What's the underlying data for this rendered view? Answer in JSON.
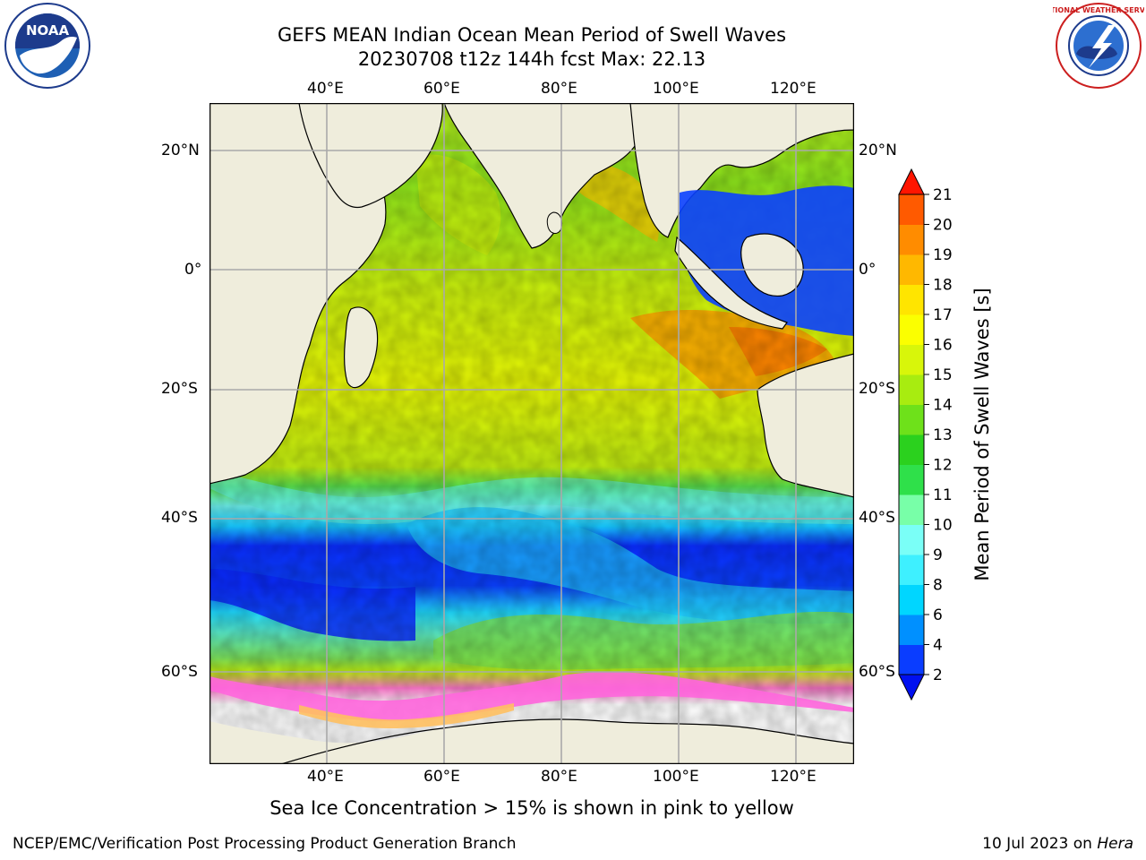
{
  "title": {
    "line1": "GEFS MEAN Indian Ocean Mean Period of Swell Waves",
    "line2": "20230708 t12z 144h fcst   Max: 22.13"
  },
  "logos": {
    "left_icon": "noaa-logo",
    "left_text": "NOAA",
    "right_icon": "nws-logo",
    "right_text": "NATIONAL WEATHER SERVICE"
  },
  "axes": {
    "lon_labels": [
      "40°E",
      "60°E",
      "80°E",
      "100°E",
      "120°E"
    ],
    "lon_values": [
      40,
      60,
      80,
      100,
      120
    ],
    "lat_labels": [
      "20°N",
      "0°",
      "20°S",
      "40°S",
      "60°S"
    ],
    "lat_values": [
      20,
      0,
      -20,
      -40,
      -60
    ],
    "lon_range": [
      20,
      130
    ],
    "lat_range": [
      -72,
      28
    ],
    "grid": true
  },
  "colorbar": {
    "title": "Mean Period of Swell Waves [s]",
    "ticks": [
      "2",
      "4",
      "6",
      "8",
      "9",
      "10",
      "11",
      "12",
      "13",
      "14",
      "15",
      "16",
      "17",
      "18",
      "19",
      "20",
      "21"
    ],
    "colors": [
      "#0a3dff",
      "#0090ff",
      "#00d6ff",
      "#3ef0ff",
      "#7afff7",
      "#78ffa8",
      "#2fe04a",
      "#2bd11e",
      "#6ee11a",
      "#a8ec10",
      "#d8f60a",
      "#fbff00",
      "#ffe500",
      "#ffb800",
      "#ff8c00",
      "#ff5a00",
      "#ff2a00"
    ],
    "under_color": "#0010f0",
    "over_color": "#ff1500"
  },
  "caption": "Sea Ice Concentration > 15% is shown in pink to yellow",
  "footer": {
    "left": "NCEP/EMC/Verification Post Processing Product Generation Branch",
    "right_date": "10 Jul 2023 on ",
    "right_machine": "Hera"
  },
  "colors": {
    "land": "#efeddc",
    "ice_pink": "#ff66dd",
    "gridline": "#a9a9a9"
  }
}
